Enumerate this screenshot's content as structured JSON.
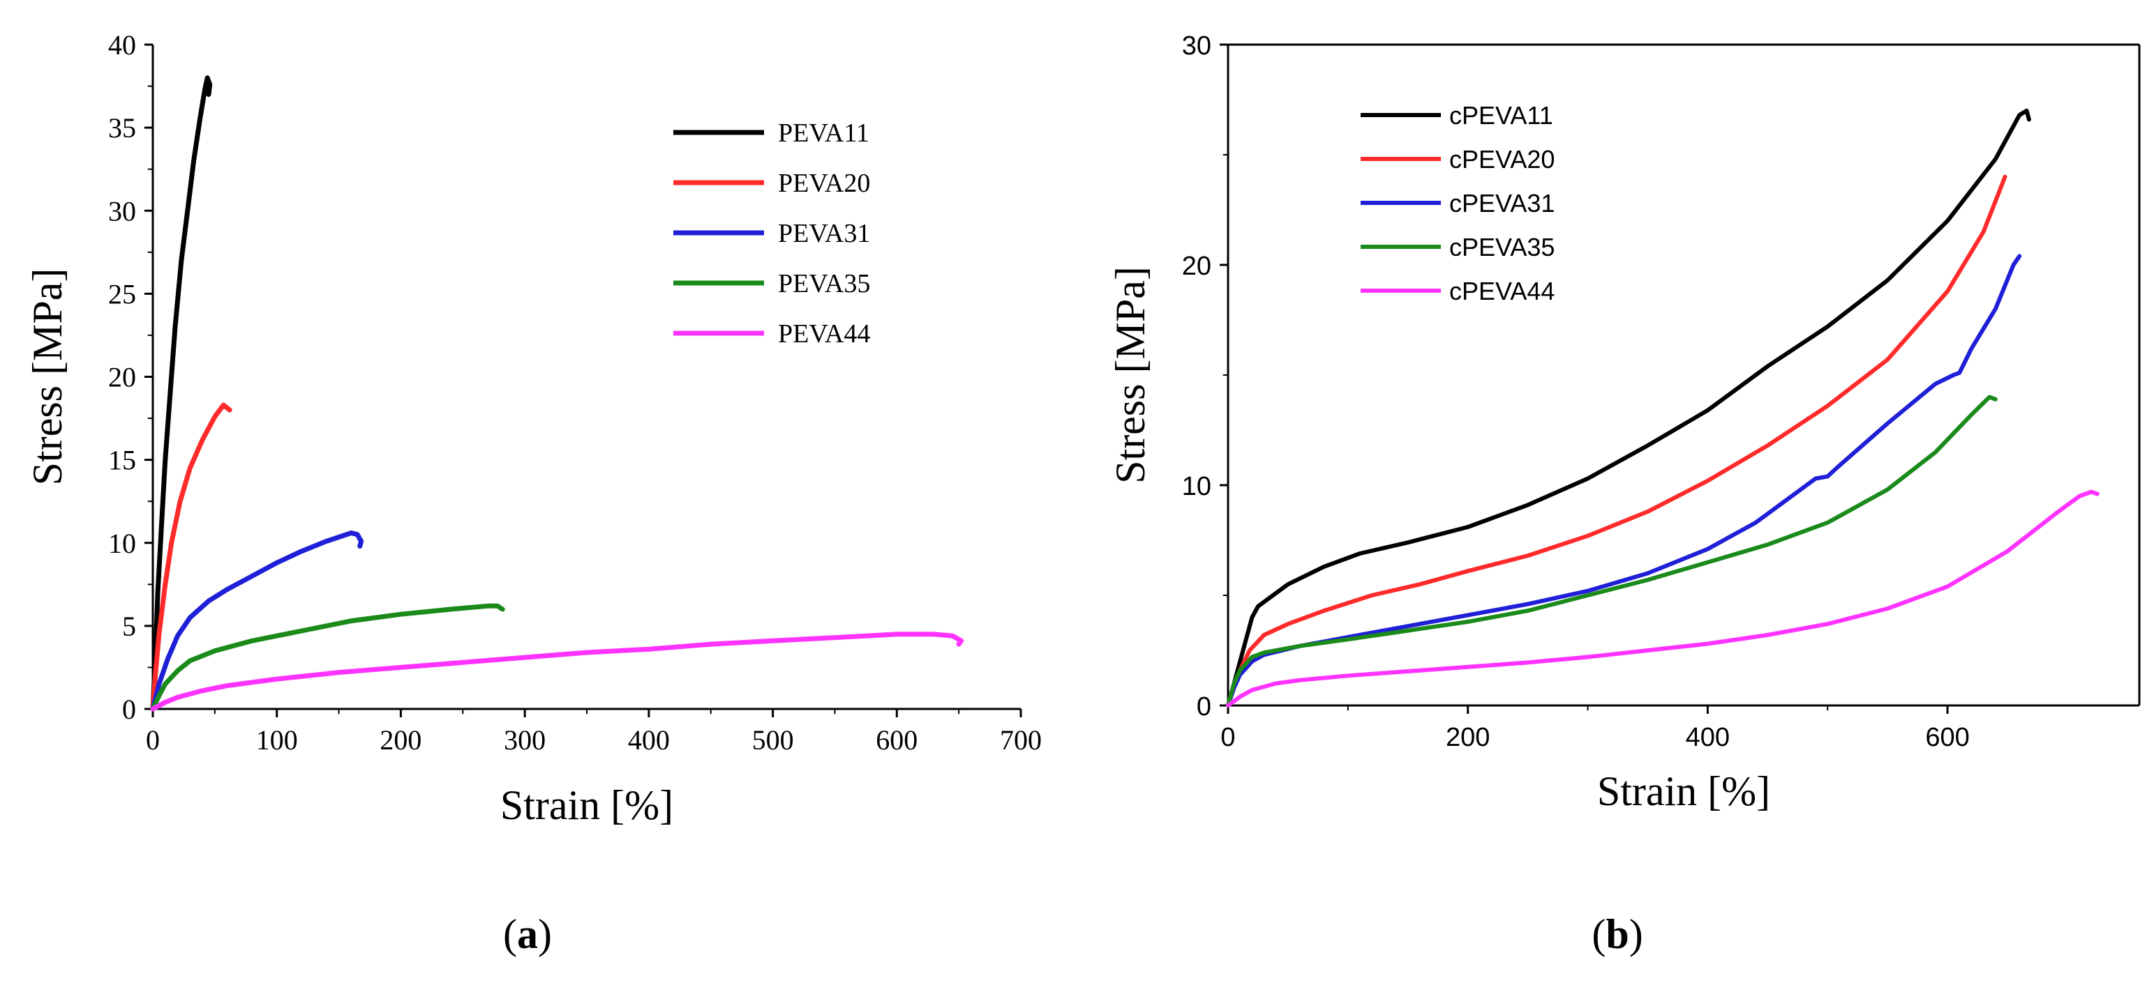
{
  "chart_data": [
    {
      "panel": "a",
      "type": "line",
      "caption_open": "(",
      "caption_letter": "a",
      "caption_close": ")",
      "xlabel": "Strain [%]",
      "ylabel": "Stress [MPa]",
      "xlim": [
        0,
        700
      ],
      "ylim": [
        0,
        40
      ],
      "xticks": [
        0,
        100,
        200,
        300,
        400,
        500,
        600,
        700
      ],
      "yticks": [
        0,
        5,
        10,
        15,
        20,
        25,
        30,
        35,
        40
      ],
      "legend_position": "top-right",
      "series": [
        {
          "name": "PEVA11",
          "color": "#000000",
          "points": [
            [
              0,
              0
            ],
            [
              2,
              3
            ],
            [
              4,
              7
            ],
            [
              7,
              11
            ],
            [
              10,
              15
            ],
            [
              14,
              19
            ],
            [
              18,
              23
            ],
            [
              23,
              27
            ],
            [
              28,
              30
            ],
            [
              33,
              33
            ],
            [
              38,
              35.5
            ],
            [
              42,
              37.3
            ],
            [
              44,
              38
            ],
            [
              46,
              37.6
            ],
            [
              45,
              37
            ]
          ]
        },
        {
          "name": "PEVA20",
          "color": "#ff2a2a",
          "points": [
            [
              0,
              0
            ],
            [
              2,
              2
            ],
            [
              5,
              4.5
            ],
            [
              10,
              7.5
            ],
            [
              15,
              10
            ],
            [
              22,
              12.5
            ],
            [
              30,
              14.5
            ],
            [
              40,
              16.2
            ],
            [
              50,
              17.6
            ],
            [
              57,
              18.3
            ],
            [
              62,
              18
            ]
          ]
        },
        {
          "name": "PEVA31",
          "color": "#1f1fd8",
          "points": [
            [
              0,
              0
            ],
            [
              5,
              1.5
            ],
            [
              12,
              3
            ],
            [
              20,
              4.4
            ],
            [
              30,
              5.5
            ],
            [
              45,
              6.5
            ],
            [
              60,
              7.2
            ],
            [
              80,
              8
            ],
            [
              100,
              8.8
            ],
            [
              120,
              9.5
            ],
            [
              140,
              10.1
            ],
            [
              160,
              10.6
            ],
            [
              165,
              10.5
            ],
            [
              168,
              10.1
            ],
            [
              167,
              9.8
            ]
          ]
        },
        {
          "name": "PEVA35",
          "color": "#1a8a1a",
          "points": [
            [
              0,
              0
            ],
            [
              5,
              0.8
            ],
            [
              10,
              1.5
            ],
            [
              20,
              2.3
            ],
            [
              30,
              2.9
            ],
            [
              50,
              3.5
            ],
            [
              80,
              4.1
            ],
            [
              120,
              4.7
            ],
            [
              160,
              5.3
            ],
            [
              200,
              5.7
            ],
            [
              240,
              6
            ],
            [
              270,
              6.2
            ],
            [
              278,
              6.2
            ],
            [
              282,
              6.0
            ]
          ]
        },
        {
          "name": "PEVA44",
          "color": "#ff33ff",
          "points": [
            [
              0,
              0
            ],
            [
              10,
              0.4
            ],
            [
              20,
              0.7
            ],
            [
              40,
              1.1
            ],
            [
              60,
              1.4
            ],
            [
              100,
              1.8
            ],
            [
              150,
              2.2
            ],
            [
              200,
              2.5
            ],
            [
              250,
              2.8
            ],
            [
              300,
              3.1
            ],
            [
              350,
              3.4
            ],
            [
              400,
              3.6
            ],
            [
              450,
              3.9
            ],
            [
              500,
              4.1
            ],
            [
              550,
              4.3
            ],
            [
              600,
              4.5
            ],
            [
              630,
              4.5
            ],
            [
              645,
              4.4
            ],
            [
              652,
              4.1
            ],
            [
              650,
              3.9
            ]
          ]
        }
      ]
    },
    {
      "panel": "b",
      "type": "line",
      "caption_open": "(",
      "caption_letter": "b",
      "caption_close": ")",
      "xlabel": "Strain [%]",
      "ylabel": "Stress [MPa]",
      "xlim": [
        0,
        760
      ],
      "ylim": [
        0,
        30
      ],
      "xticks": [
        0,
        200,
        400,
        600
      ],
      "yticks": [
        0,
        10,
        20,
        30
      ],
      "legend_position": "top-left",
      "series": [
        {
          "name": "cPEVA11",
          "color": "#000000",
          "points": [
            [
              0,
              0
            ],
            [
              5,
              1
            ],
            [
              10,
              2
            ],
            [
              15,
              3
            ],
            [
              20,
              4
            ],
            [
              25,
              4.5
            ],
            [
              35,
              4.9
            ],
            [
              50,
              5.5
            ],
            [
              80,
              6.3
            ],
            [
              110,
              6.9
            ],
            [
              150,
              7.4
            ],
            [
              200,
              8.1
            ],
            [
              250,
              9.1
            ],
            [
              300,
              10.3
            ],
            [
              350,
              11.8
            ],
            [
              400,
              13.4
            ],
            [
              450,
              15.4
            ],
            [
              500,
              17.2
            ],
            [
              550,
              19.3
            ],
            [
              600,
              22
            ],
            [
              640,
              24.8
            ],
            [
              660,
              26.8
            ],
            [
              666,
              27
            ],
            [
              668,
              26.6
            ]
          ]
        },
        {
          "name": "cPEVA20",
          "color": "#ff2a2a",
          "points": [
            [
              0,
              0
            ],
            [
              5,
              0.8
            ],
            [
              10,
              1.6
            ],
            [
              18,
              2.5
            ],
            [
              30,
              3.2
            ],
            [
              50,
              3.7
            ],
            [
              80,
              4.3
            ],
            [
              120,
              5
            ],
            [
              160,
              5.5
            ],
            [
              200,
              6.1
            ],
            [
              250,
              6.8
            ],
            [
              300,
              7.7
            ],
            [
              350,
              8.8
            ],
            [
              400,
              10.2
            ],
            [
              450,
              11.8
            ],
            [
              500,
              13.6
            ],
            [
              550,
              15.7
            ],
            [
              600,
              18.8
            ],
            [
              630,
              21.5
            ],
            [
              648,
              24
            ]
          ]
        },
        {
          "name": "cPEVA31",
          "color": "#1f1fd8",
          "points": [
            [
              0,
              0
            ],
            [
              5,
              0.8
            ],
            [
              10,
              1.4
            ],
            [
              20,
              2
            ],
            [
              30,
              2.3
            ],
            [
              60,
              2.7
            ],
            [
              100,
              3.1
            ],
            [
              150,
              3.6
            ],
            [
              200,
              4.1
            ],
            [
              250,
              4.6
            ],
            [
              300,
              5.2
            ],
            [
              350,
              6
            ],
            [
              400,
              7.1
            ],
            [
              440,
              8.3
            ],
            [
              470,
              9.5
            ],
            [
              490,
              10.3
            ],
            [
              500,
              10.4
            ],
            [
              510,
              10.9
            ],
            [
              550,
              12.8
            ],
            [
              590,
              14.6
            ],
            [
              605,
              15
            ],
            [
              610,
              15.1
            ],
            [
              620,
              16.2
            ],
            [
              640,
              18
            ],
            [
              655,
              20
            ],
            [
              660,
              20.4
            ]
          ]
        },
        {
          "name": "cPEVA35",
          "color": "#1a8a1a",
          "points": [
            [
              0,
              0
            ],
            [
              5,
              1
            ],
            [
              10,
              1.6
            ],
            [
              20,
              2.2
            ],
            [
              30,
              2.4
            ],
            [
              60,
              2.7
            ],
            [
              100,
              3
            ],
            [
              150,
              3.4
            ],
            [
              200,
              3.8
            ],
            [
              250,
              4.3
            ],
            [
              300,
              5
            ],
            [
              350,
              5.7
            ],
            [
              400,
              6.5
            ],
            [
              450,
              7.3
            ],
            [
              500,
              8.3
            ],
            [
              550,
              9.8
            ],
            [
              590,
              11.5
            ],
            [
              620,
              13.2
            ],
            [
              635,
              14
            ],
            [
              640,
              13.9
            ]
          ]
        },
        {
          "name": "cPEVA44",
          "color": "#ff33ff",
          "points": [
            [
              0,
              0
            ],
            [
              10,
              0.4
            ],
            [
              20,
              0.7
            ],
            [
              40,
              1
            ],
            [
              60,
              1.15
            ],
            [
              100,
              1.35
            ],
            [
              150,
              1.55
            ],
            [
              200,
              1.75
            ],
            [
              250,
              1.95
            ],
            [
              300,
              2.2
            ],
            [
              350,
              2.5
            ],
            [
              400,
              2.8
            ],
            [
              450,
              3.2
            ],
            [
              500,
              3.7
            ],
            [
              550,
              4.4
            ],
            [
              600,
              5.4
            ],
            [
              650,
              7
            ],
            [
              690,
              8.7
            ],
            [
              710,
              9.5
            ],
            [
              720,
              9.7
            ],
            [
              725,
              9.6
            ]
          ]
        }
      ]
    }
  ]
}
